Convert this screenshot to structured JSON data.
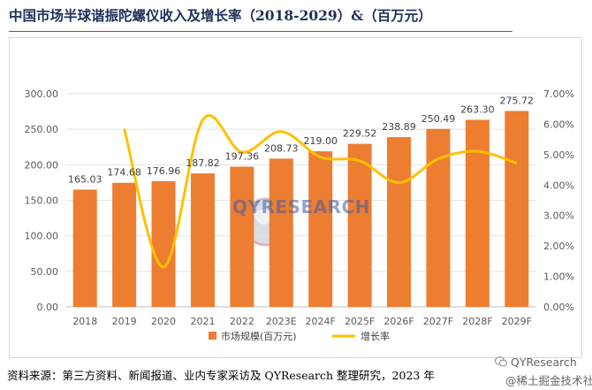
{
  "title": "中国市场半球谐振陀螺仪收入及增长率（2018-2029）&（百万元）",
  "footnote": "资料来源：第三方资料、新闻报道、业内专家采访及 QYResearch 整理研究，2023 年",
  "watermark": {
    "logo_text": "QYRESEARCH",
    "wechat_handle": "QYResearch",
    "wechat_sub": "@稀土掘金技术社区"
  },
  "colors": {
    "bar": "#ed7d31",
    "line": "#ffc000",
    "title": "#1f2f5a",
    "axis_text": "#595959"
  },
  "chart_data": {
    "type": "bar",
    "categories": [
      "2018",
      "2019",
      "2020",
      "2021",
      "2022",
      "2023E",
      "2024F",
      "2025F",
      "2026F",
      "2027F",
      "2028F",
      "2029F"
    ],
    "series": [
      {
        "name": "市场规模(百万元)",
        "type": "bar",
        "axis": "left",
        "values": [
          165.03,
          174.68,
          176.96,
          187.82,
          197.36,
          208.73,
          219.0,
          229.52,
          238.89,
          250.49,
          263.3,
          275.72
        ],
        "labels": [
          "165.03",
          "174.68",
          "176.96",
          "187.82",
          "197.36",
          "208.73",
          "219.00",
          "229.52",
          "238.89",
          "250.49",
          "263.30",
          "275.72"
        ]
      },
      {
        "name": "增长率",
        "type": "line",
        "axis": "right",
        "values": [
          null,
          5.85,
          1.31,
          6.14,
          5.08,
          5.76,
          4.92,
          4.8,
          4.08,
          4.86,
          5.11,
          4.72
        ]
      }
    ],
    "y_left": {
      "min": 0,
      "max": 300,
      "ticks": [
        "0.00",
        "50.00",
        "100.00",
        "150.00",
        "200.00",
        "250.00",
        "300.00"
      ]
    },
    "y_right": {
      "min": 0,
      "max": 7,
      "ticks": [
        "0.00%",
        "1.00%",
        "2.00%",
        "3.00%",
        "4.00%",
        "5.00%",
        "6.00%",
        "7.00%"
      ]
    },
    "grid": true,
    "legend_position": "bottom"
  }
}
